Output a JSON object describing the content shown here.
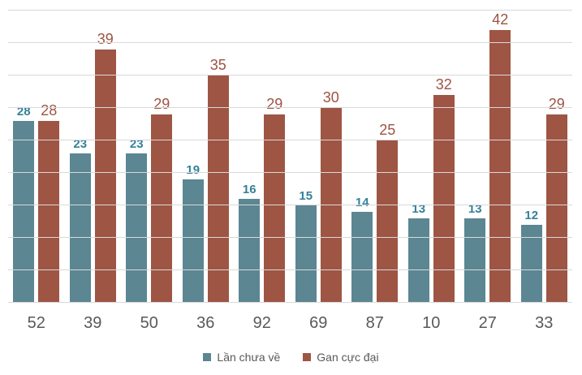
{
  "chart_data": {
    "type": "bar",
    "title": "",
    "xlabel": "",
    "ylabel": "",
    "categories": [
      "52",
      "39",
      "50",
      "36",
      "92",
      "69",
      "87",
      "10",
      "27",
      "33"
    ],
    "series": [
      {
        "name": "Lần chưa về",
        "values": [
          28,
          23,
          23,
          19,
          16,
          15,
          14,
          13,
          13,
          12
        ],
        "color": "#5b8692",
        "label_color": "#35809a"
      },
      {
        "name": "Gan cực đại",
        "values": [
          28,
          39,
          29,
          35,
          29,
          30,
          25,
          32,
          42,
          29
        ],
        "color": "#9e5544",
        "label_color": "#9e5343"
      }
    ],
    "ylim": [
      0,
      45
    ],
    "gridline_step": 5,
    "grid": true,
    "grid_color": "#d9d9d9",
    "axis_label_color": "#595959",
    "legend_position": "bottom",
    "data_labels": "above-bars",
    "y_axis_tick_labels_visible": false
  }
}
